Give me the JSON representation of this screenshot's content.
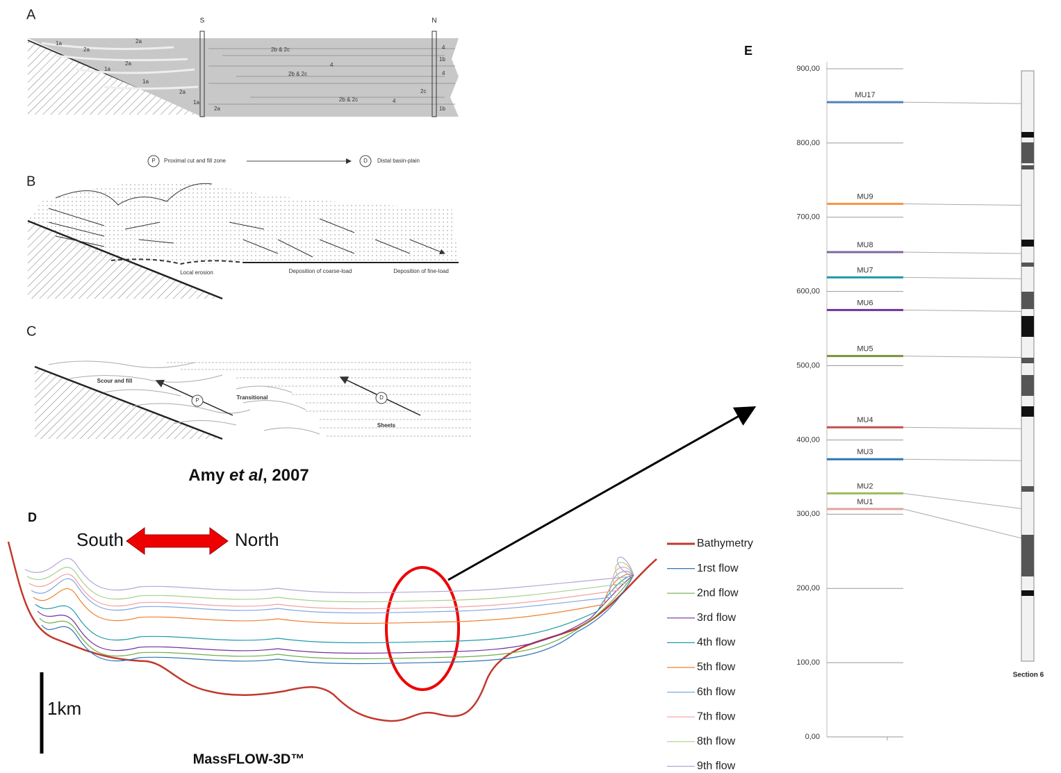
{
  "panel_a": {
    "label": "A",
    "south": "S",
    "north": "N",
    "facies": [
      "1a",
      "2a",
      "2a",
      "2b & 2c",
      "4",
      "1a",
      "2a",
      "1b",
      "2b & 2c",
      "1a",
      "4",
      "2a",
      "2c",
      "4",
      "1a",
      "2a",
      "2b & 2c",
      "4",
      "1b"
    ]
  },
  "transect": {
    "p": "P",
    "p_text": "Proximal cut and fill zone",
    "d": "D",
    "d_text": "Distal basin-plain"
  },
  "panel_b": {
    "label": "B",
    "notes": [
      "Local erosion",
      "Deposition of coarse-load",
      "Deposition of fine-load"
    ]
  },
  "panel_c": {
    "label": "C",
    "notes": [
      "Scour and fill",
      "Transitional",
      "Sheets"
    ],
    "p": "P",
    "d": "D"
  },
  "citation": {
    "author": "Amy ",
    "etal": "et al",
    "year": ", 2007"
  },
  "panel_d": {
    "label": "D",
    "south": "South",
    "north": "North",
    "scale": "1km",
    "software": "MassFLOW-3D™",
    "legend": [
      {
        "name": "Bathymetry",
        "color": "#c0392b"
      },
      {
        "name": "1rst flow",
        "color": "#2e75b6"
      },
      {
        "name": "2nd flow",
        "color": "#70ad47"
      },
      {
        "name": "3rd flow",
        "color": "#7030a0"
      },
      {
        "name": "4th flow",
        "color": "#1f9aa8"
      },
      {
        "name": "5th flow",
        "color": "#f08030"
      },
      {
        "name": "6th flow",
        "color": "#7fa8e0"
      },
      {
        "name": "7th flow",
        "color": "#f4a0a0"
      },
      {
        "name": "8th flow",
        "color": "#a8d08d"
      },
      {
        "name": "9th flow",
        "color": "#b4a7d6"
      }
    ]
  },
  "chart_data": {
    "type": "hline",
    "panel_label": "E",
    "section_label": "Section 6",
    "ylim": [
      0,
      900
    ],
    "yticks": [
      {
        "value": 0,
        "label": "0,00"
      },
      {
        "value": 100,
        "label": "100,00"
      },
      {
        "value": 200,
        "label": "200,00"
      },
      {
        "value": 300,
        "label": "300,00"
      },
      {
        "value": 400,
        "label": "400,00"
      },
      {
        "value": 500,
        "label": "500,00"
      },
      {
        "value": 600,
        "label": "600,00"
      },
      {
        "value": 700,
        "label": "700,00"
      },
      {
        "value": 800,
        "label": "800,00"
      },
      {
        "value": 900,
        "label": "900,00"
      }
    ],
    "grid": true,
    "categories": [
      "MU17",
      "MU9",
      "MU8",
      "MU7",
      "MU6",
      "MU5",
      "MU4",
      "MU3",
      "MU2",
      "MU1"
    ],
    "values": [
      855,
      718,
      653,
      619,
      575,
      513,
      417,
      374,
      328,
      307
    ],
    "colors": [
      "#4f81bd",
      "#f79646",
      "#8064a2",
      "#1f9aa8",
      "#7030a0",
      "#77933c",
      "#c0504d",
      "#2e75b6",
      "#9bbb59",
      "#e6a0a0"
    ]
  }
}
